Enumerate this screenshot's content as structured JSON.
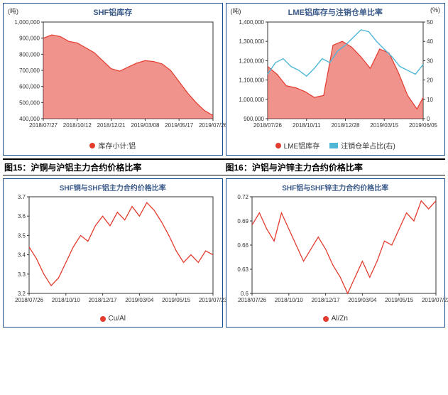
{
  "colors": {
    "panel_border": "#1a4d8f",
    "series_red": "#e33b2e",
    "series_fill": "rgba(227,59,46,0.55)",
    "series_cyan": "#4fb6d6",
    "axis": "#333333",
    "text": "#333333"
  },
  "chart1": {
    "type": "area",
    "title": "SHF铝库存",
    "title_fontsize": 11,
    "y_unit": "(吨)",
    "xlim": [
      "2018/07/27",
      "2019/07/26"
    ],
    "xticks": [
      "2018/07/27",
      "2018/10/12",
      "2018/12/21",
      "2019/03/08",
      "2019/05/17",
      "2019/07/26"
    ],
    "ylim": [
      400000,
      1000000
    ],
    "yticks": [
      400000,
      500000,
      600000,
      700000,
      800000,
      900000,
      1000000
    ],
    "ylabels": [
      "400,000",
      "500,000",
      "600,000",
      "700,000",
      "800,000",
      "900,000",
      "1,000,000"
    ],
    "tick_fontsize": 8,
    "series": [
      {
        "name": "库存小计:铝",
        "color": "#e33b2e",
        "fill": "rgba(227,59,46,0.55)",
        "x": [
          0,
          0.05,
          0.1,
          0.15,
          0.2,
          0.25,
          0.3,
          0.35,
          0.4,
          0.45,
          0.5,
          0.55,
          0.6,
          0.65,
          0.7,
          0.75,
          0.8,
          0.85,
          0.9,
          0.95,
          1.0
        ],
        "y": [
          900000,
          920000,
          910000,
          880000,
          870000,
          840000,
          810000,
          760000,
          710000,
          695000,
          720000,
          745000,
          760000,
          755000,
          740000,
          700000,
          630000,
          560000,
          500000,
          450000,
          420000
        ]
      }
    ],
    "legend": [
      "库存小计:铝"
    ]
  },
  "chart2": {
    "type": "area_line_dual",
    "title": "LME铝库存与注销仓单比率",
    "title_fontsize": 11,
    "y_unit_left": "(吨)",
    "y_unit_right": "(%)",
    "xlim": [
      "2018/07/26",
      "2019/06/05"
    ],
    "xticks": [
      "2018/07/26",
      "2018/10/11",
      "2018/12/28",
      "2019/03/15",
      "2019/06/05"
    ],
    "ylim_left": [
      900000,
      1400000
    ],
    "yticks_left": [
      900000,
      1000000,
      1100000,
      1200000,
      1300000,
      1400000
    ],
    "ylabels_left": [
      "900,000",
      "1,000,000",
      "1,100,000",
      "1,200,000",
      "1,300,000",
      "1,400,000"
    ],
    "ylim_right": [
      0,
      50
    ],
    "yticks_right": [
      0,
      10,
      20,
      30,
      40,
      50
    ],
    "tick_fontsize": 8,
    "area": {
      "name": "LME铝库存",
      "color": "#e33b2e",
      "fill": "rgba(227,59,46,0.55)",
      "x": [
        0,
        0.06,
        0.12,
        0.18,
        0.24,
        0.3,
        0.36,
        0.42,
        0.48,
        0.54,
        0.6,
        0.66,
        0.72,
        0.78,
        0.84,
        0.9,
        0.96,
        1.0
      ],
      "y": [
        1170000,
        1130000,
        1070000,
        1060000,
        1040000,
        1010000,
        1020000,
        1280000,
        1300000,
        1270000,
        1220000,
        1160000,
        1260000,
        1240000,
        1140000,
        1020000,
        950000,
        1010000
      ]
    },
    "line": {
      "name": "注销仓单占比(右)",
      "color": "#4fb6d6",
      "x": [
        0,
        0.05,
        0.1,
        0.15,
        0.2,
        0.25,
        0.3,
        0.35,
        0.4,
        0.45,
        0.5,
        0.55,
        0.6,
        0.65,
        0.7,
        0.75,
        0.8,
        0.85,
        0.9,
        0.95,
        1.0
      ],
      "y": [
        23,
        29,
        31,
        27,
        25,
        22,
        26,
        31,
        29,
        35,
        38,
        42,
        46,
        45,
        40,
        36,
        32,
        27,
        25,
        23,
        28
      ]
    },
    "legend": [
      "LME铝库存",
      "注销仓单占比(右)"
    ]
  },
  "captions": {
    "left": "图15：沪铜与沪铝主力合约价格比率",
    "right": "图16：沪铝与沪锌主力合约价格比率",
    "fontsize": 12
  },
  "chart3": {
    "type": "line",
    "title": "SHF铜与SHF铝主力合约价格比率",
    "title_fontsize": 10,
    "xlim": [
      "2018/07/26",
      "2019/07/23"
    ],
    "xticks": [
      "2018/07/26",
      "2018/10/10",
      "2018/12/17",
      "2019/03/04",
      "2019/05/15",
      "2019/07/23"
    ],
    "ylim": [
      3.2,
      3.7
    ],
    "yticks": [
      3.2,
      3.3,
      3.4,
      3.5,
      3.6,
      3.7
    ],
    "tick_fontsize": 8,
    "series": [
      {
        "name": "Cu/Al",
        "color": "#e33b2e",
        "x": [
          0,
          0.04,
          0.08,
          0.12,
          0.16,
          0.2,
          0.24,
          0.28,
          0.32,
          0.36,
          0.4,
          0.44,
          0.48,
          0.52,
          0.56,
          0.6,
          0.64,
          0.68,
          0.72,
          0.76,
          0.8,
          0.84,
          0.88,
          0.92,
          0.96,
          1.0
        ],
        "y": [
          3.44,
          3.38,
          3.3,
          3.24,
          3.28,
          3.36,
          3.44,
          3.5,
          3.47,
          3.55,
          3.6,
          3.55,
          3.62,
          3.58,
          3.65,
          3.6,
          3.67,
          3.63,
          3.57,
          3.5,
          3.42,
          3.36,
          3.4,
          3.36,
          3.42,
          3.4
        ]
      }
    ],
    "legend": [
      "Cu/Al"
    ]
  },
  "chart4": {
    "type": "line",
    "title": "SHF铝与SHF锌主力合约价格比率",
    "title_fontsize": 10,
    "xlim": [
      "2018/07/26",
      "2019/07/23"
    ],
    "xticks": [
      "2018/07/26",
      "2018/10/10",
      "2018/12/17",
      "2019/03/04",
      "2019/05/15",
      "2019/07/23"
    ],
    "ylim": [
      0.6,
      0.72
    ],
    "yticks": [
      0.6,
      0.63,
      0.66,
      0.69,
      0.72
    ],
    "tick_fontsize": 8,
    "series": [
      {
        "name": "Al/Zn",
        "color": "#e33b2e",
        "x": [
          0,
          0.04,
          0.08,
          0.12,
          0.16,
          0.2,
          0.24,
          0.28,
          0.32,
          0.36,
          0.4,
          0.44,
          0.48,
          0.52,
          0.56,
          0.6,
          0.64,
          0.68,
          0.72,
          0.76,
          0.8,
          0.84,
          0.88,
          0.92,
          0.96,
          1.0
        ],
        "y": [
          0.685,
          0.7,
          0.68,
          0.665,
          0.7,
          0.68,
          0.66,
          0.64,
          0.655,
          0.67,
          0.655,
          0.635,
          0.62,
          0.6,
          0.62,
          0.64,
          0.62,
          0.64,
          0.665,
          0.66,
          0.68,
          0.7,
          0.69,
          0.715,
          0.705,
          0.715
        ]
      }
    ],
    "legend": [
      "Al/Zn"
    ]
  }
}
